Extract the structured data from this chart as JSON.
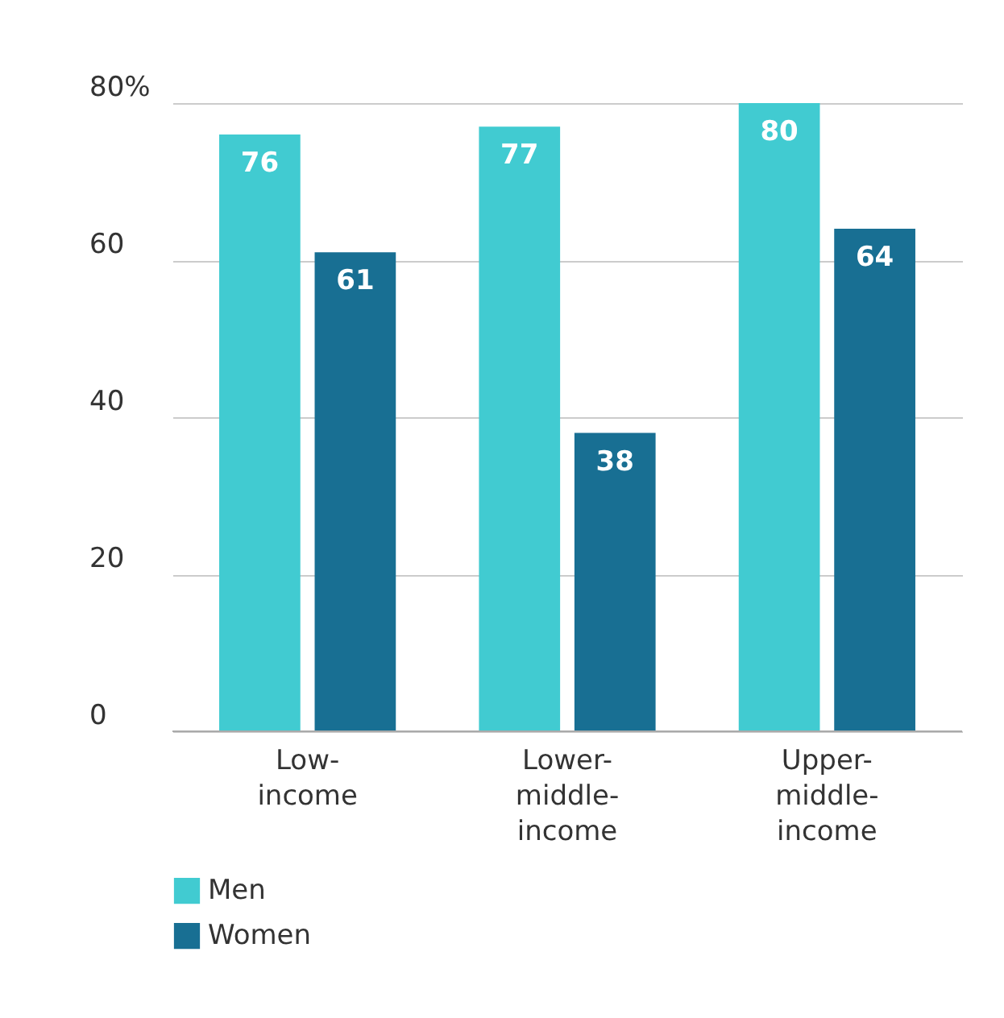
{
  "chart_data": {
    "type": "bar",
    "categories": [
      "Low-income",
      "Lower-middle-income",
      "Upper-middle-income"
    ],
    "series": [
      {
        "name": "Men",
        "color": "#41cbd1",
        "values": [
          76,
          77,
          80
        ]
      },
      {
        "name": "Women",
        "color": "#186f93",
        "values": [
          61,
          38,
          64
        ]
      }
    ],
    "ylim": [
      0,
      80
    ],
    "yticks": [
      0,
      20,
      40,
      60,
      {
        "value": 80,
        "label": "80%"
      }
    ],
    "grid": "y",
    "legend": "bottom left",
    "data_labels": true
  }
}
